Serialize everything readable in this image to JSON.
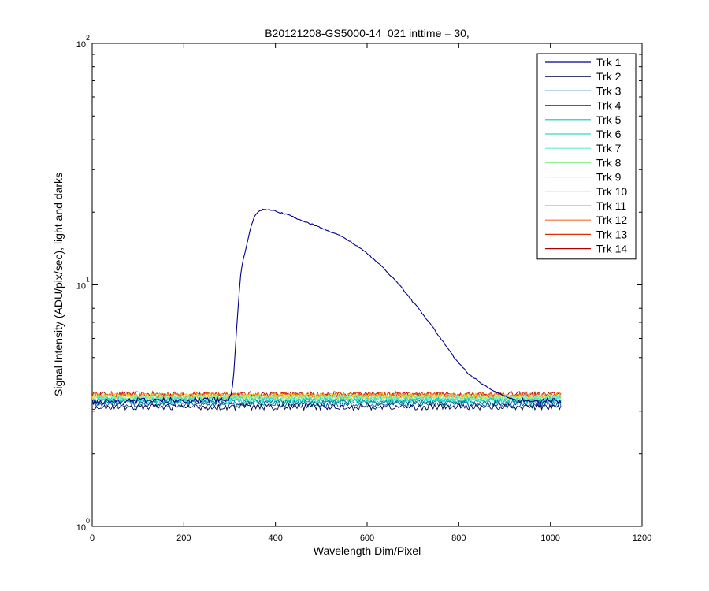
{
  "chart_data": {
    "type": "line",
    "title": "B20121208-GS5000-14_021 inttime = 30,",
    "xlabel": "Wavelength Dim/Pixel",
    "ylabel": "Signal Intensity (ADU/pix/sec), light and darks",
    "xlim": [
      0,
      1200
    ],
    "ylim": [
      1,
      100
    ],
    "yscale": "log",
    "x_ticks": [
      {
        "value": 0,
        "label": "0"
      },
      {
        "value": 200,
        "label": "200"
      },
      {
        "value": 400,
        "label": "400"
      },
      {
        "value": 600,
        "label": "600"
      },
      {
        "value": 800,
        "label": "800"
      },
      {
        "value": 1000,
        "label": "1000"
      },
      {
        "value": 1200,
        "label": "1200"
      }
    ],
    "y_ticks": [
      {
        "value": 1,
        "base": "10",
        "exp": "0"
      },
      {
        "value": 10,
        "base": "10",
        "exp": "1"
      },
      {
        "value": 100,
        "base": "10",
        "exp": "2"
      }
    ],
    "grid": false,
    "legend_position": "top-right",
    "series": [
      {
        "name": "Trk 1",
        "color": "#00008f",
        "points": [
          [
            0,
            3.3
          ],
          [
            300,
            3.35
          ],
          [
            305,
            3.6
          ],
          [
            310,
            4.5
          ],
          [
            315,
            6.5
          ],
          [
            320,
            8.8
          ],
          [
            325,
            11.5
          ],
          [
            335,
            14.0
          ],
          [
            345,
            17.0
          ],
          [
            355,
            19.3
          ],
          [
            365,
            20.3
          ],
          [
            375,
            20.6
          ],
          [
            400,
            20.2
          ],
          [
            430,
            19.4
          ],
          [
            460,
            18.4
          ],
          [
            490,
            17.5
          ],
          [
            520,
            16.6
          ],
          [
            550,
            15.7
          ],
          [
            580,
            14.4
          ],
          [
            610,
            13.0
          ],
          [
            640,
            11.5
          ],
          [
            670,
            10.0
          ],
          [
            700,
            8.5
          ],
          [
            730,
            7.2
          ],
          [
            760,
            6.0
          ],
          [
            790,
            5.0
          ],
          [
            820,
            4.3
          ],
          [
            850,
            3.9
          ],
          [
            880,
            3.6
          ],
          [
            910,
            3.4
          ],
          [
            930,
            3.33
          ],
          [
            1024,
            3.3
          ]
        ]
      },
      {
        "name": "Trk 2",
        "color": "#000040",
        "points": [
          [
            0,
            3.12
          ],
          [
            1024,
            3.12
          ]
        ]
      },
      {
        "name": "Trk 3",
        "color": "#00509f",
        "points": [
          [
            0,
            3.2
          ],
          [
            1024,
            3.2
          ]
        ]
      },
      {
        "name": "Trk 4",
        "color": "#00809f",
        "points": [
          [
            0,
            3.26
          ],
          [
            1024,
            3.26
          ]
        ]
      },
      {
        "name": "Trk 5",
        "color": "#00c8c8",
        "points": [
          [
            0,
            3.3
          ],
          [
            1024,
            3.3
          ]
        ]
      },
      {
        "name": "Trk 6",
        "color": "#30d8c8",
        "points": [
          [
            0,
            3.34
          ],
          [
            1024,
            3.34
          ]
        ]
      },
      {
        "name": "Trk 7",
        "color": "#60f0d0",
        "points": [
          [
            0,
            3.37
          ],
          [
            1024,
            3.37
          ]
        ]
      },
      {
        "name": "Trk 8",
        "color": "#90f090",
        "points": [
          [
            0,
            3.4
          ],
          [
            1024,
            3.4
          ]
        ]
      },
      {
        "name": "Trk 9",
        "color": "#c0f070",
        "points": [
          [
            0,
            3.42
          ],
          [
            1024,
            3.42
          ]
        ]
      },
      {
        "name": "Trk 10",
        "color": "#e0e030",
        "points": [
          [
            0,
            3.44
          ],
          [
            1024,
            3.44
          ]
        ]
      },
      {
        "name": "Trk 11",
        "color": "#f0b000",
        "points": [
          [
            0,
            3.46
          ],
          [
            1024,
            3.46
          ]
        ]
      },
      {
        "name": "Trk 12",
        "color": "#f07030",
        "points": [
          [
            0,
            3.48
          ],
          [
            1024,
            3.48
          ]
        ]
      },
      {
        "name": "Trk 13",
        "color": "#e03000",
        "points": [
          [
            0,
            3.5
          ],
          [
            1024,
            3.5
          ]
        ]
      },
      {
        "name": "Trk 14",
        "color": "#b00000",
        "points": [
          [
            0,
            3.52
          ],
          [
            1024,
            3.52
          ]
        ]
      }
    ]
  }
}
